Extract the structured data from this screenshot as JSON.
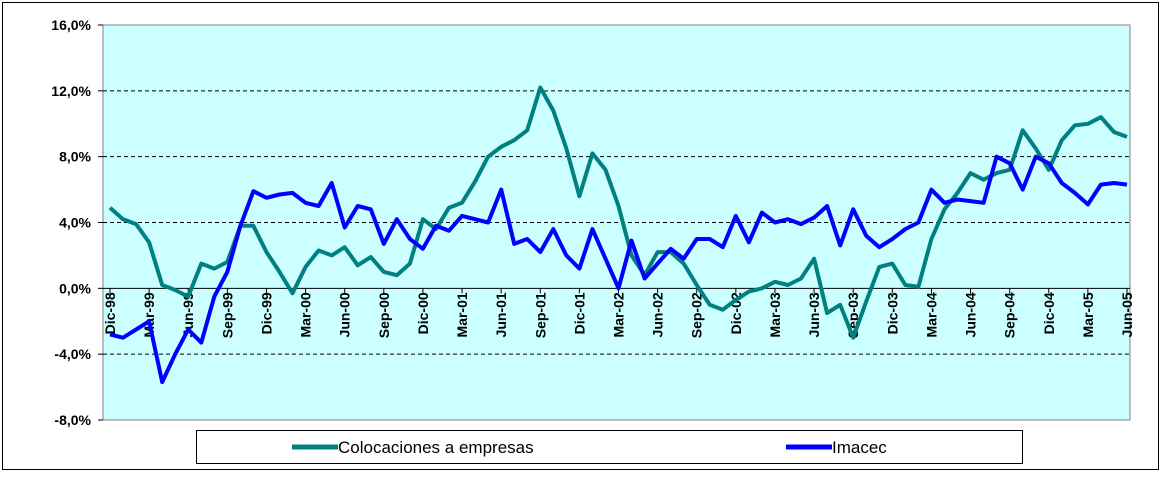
{
  "chart_data": {
    "type": "line",
    "categories": [
      "Dic-98",
      null,
      null,
      "Mar-99",
      null,
      null,
      "Jun-99",
      null,
      null,
      "Sep-99",
      null,
      null,
      "Dic-99",
      null,
      null,
      "Mar-00",
      null,
      null,
      "Jun-00",
      null,
      null,
      "Sep-00",
      null,
      null,
      "Dic-00",
      null,
      null,
      "Mar-01",
      null,
      null,
      "Jun-01",
      null,
      null,
      "Sep-01",
      null,
      null,
      "Dic-01",
      null,
      null,
      "Mar-02",
      null,
      null,
      "Jun-02",
      null,
      null,
      "Sep-02",
      null,
      null,
      "Dic-02",
      null,
      null,
      "Mar-03",
      null,
      null,
      "Jun-03",
      null,
      null,
      "Sep-03",
      null,
      null,
      "Dic-03",
      null,
      null,
      "Mar-04",
      null,
      null,
      "Jun-04",
      null,
      null,
      "Sep-04",
      null,
      null,
      "Dic-04",
      null,
      null,
      "Mar-05",
      null,
      null,
      "Jun-05"
    ],
    "series": [
      {
        "name": "Colocaciones a empresas",
        "color": "#008080",
        "values": [
          4.9,
          4.2,
          3.9,
          2.8,
          0.2,
          -0.1,
          -0.5,
          1.5,
          1.2,
          1.6,
          3.8,
          3.8,
          2.2,
          1.0,
          -0.3,
          1.3,
          2.3,
          2.0,
          2.5,
          1.4,
          1.9,
          1.0,
          0.8,
          1.5,
          4.2,
          3.6,
          4.9,
          5.2,
          6.5,
          8.0,
          8.6,
          9.0,
          9.6,
          12.2,
          10.8,
          8.5,
          5.6,
          8.2,
          7.2,
          5.0,
          2.0,
          0.8,
          2.2,
          2.2,
          1.5,
          0.2,
          -1.0,
          -1.3,
          -0.7,
          -0.2,
          0.0,
          0.4,
          0.2,
          0.6,
          1.8,
          -1.5,
          -1.0,
          -3.0,
          -0.8,
          1.3,
          1.5,
          0.2,
          0.1,
          3.0,
          4.8,
          5.8,
          7.0,
          6.6,
          7.0,
          7.2,
          9.6,
          8.5,
          7.2,
          9.0,
          9.9,
          10.0,
          10.4,
          9.5,
          9.2
        ]
      },
      {
        "name": "Imacec",
        "color": "#0000ff",
        "values": [
          -2.8,
          -3.0,
          -2.5,
          -2.0,
          -5.7,
          -4.0,
          -2.5,
          -3.3,
          -0.5,
          1.0,
          3.8,
          5.9,
          5.5,
          5.7,
          5.8,
          5.2,
          5.0,
          6.4,
          3.7,
          5.0,
          4.8,
          2.7,
          4.2,
          3.0,
          2.4,
          3.8,
          3.5,
          4.4,
          4.2,
          4.0,
          6.0,
          2.7,
          3.0,
          2.2,
          3.6,
          2.0,
          1.2,
          3.6,
          1.8,
          0.0,
          2.9,
          0.6,
          1.5,
          2.4,
          1.8,
          3.0,
          3.0,
          2.5,
          4.4,
          2.8,
          4.6,
          4.0,
          4.2,
          3.9,
          4.3,
          5.0,
          2.6,
          4.8,
          3.2,
          2.5,
          3.0,
          3.6,
          4.0,
          6.0,
          5.2,
          5.4,
          5.3,
          5.2,
          8.0,
          7.6,
          6.0,
          8.0,
          7.6,
          6.4,
          5.8,
          5.1,
          6.3,
          6.4,
          6.3
        ]
      }
    ],
    "ylim": [
      -8,
      16
    ],
    "yticks": [
      {
        "value": -8,
        "label": "-8,0%"
      },
      {
        "value": -4,
        "label": "-4,0%"
      },
      {
        "value": 0,
        "label": "0,0%"
      },
      {
        "value": 4,
        "label": "4,0%"
      },
      {
        "value": 8,
        "label": "8,0%"
      },
      {
        "value": 12,
        "label": "12,0%"
      },
      {
        "value": 16,
        "label": "16,0%"
      }
    ],
    "grid": true,
    "legend": "bottom",
    "background": "#ccffff"
  }
}
